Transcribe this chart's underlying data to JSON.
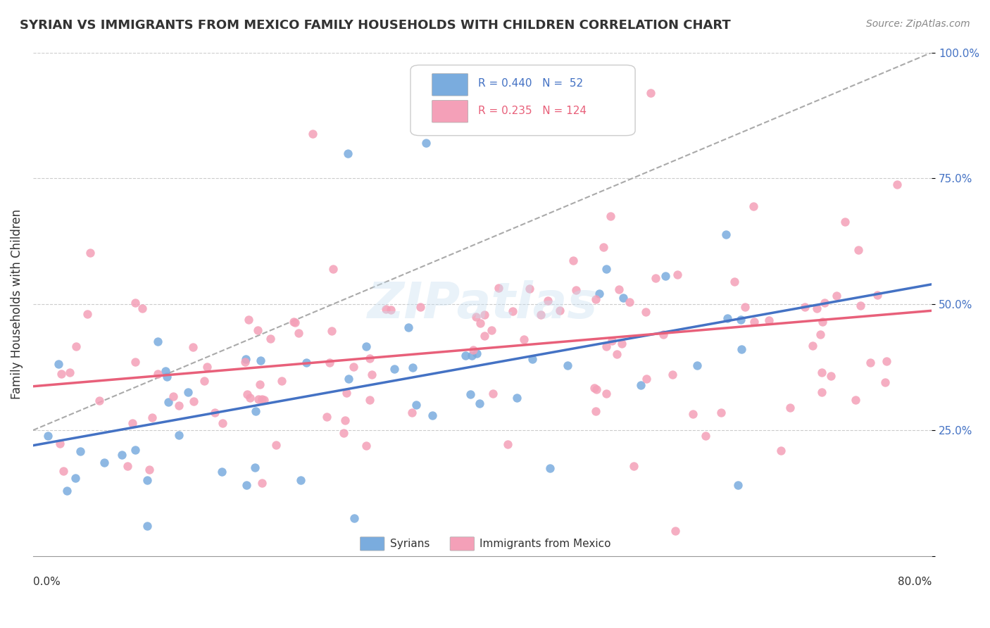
{
  "title": "SYRIAN VS IMMIGRANTS FROM MEXICO FAMILY HOUSEHOLDS WITH CHILDREN CORRELATION CHART",
  "source": "Source: ZipAtlas.com",
  "ylabel": "Family Households with Children",
  "watermark": "ZIPatlas",
  "syrian_color": "#7aacde",
  "mexico_color": "#f4a0b8",
  "syrian_line_color": "#4472c4",
  "mexico_line_color": "#e8607a",
  "dashed_line_color": "#aaaaaa",
  "syrian_R": 0.44,
  "syrian_N": 52,
  "mexico_R": 0.235,
  "mexico_N": 124,
  "xmin": 0.0,
  "xmax": 0.8,
  "ymin": 0.0,
  "ymax": 1.0,
  "background_color": "#ffffff",
  "grid_color": "#cccccc",
  "tick_color": "#4472c4"
}
